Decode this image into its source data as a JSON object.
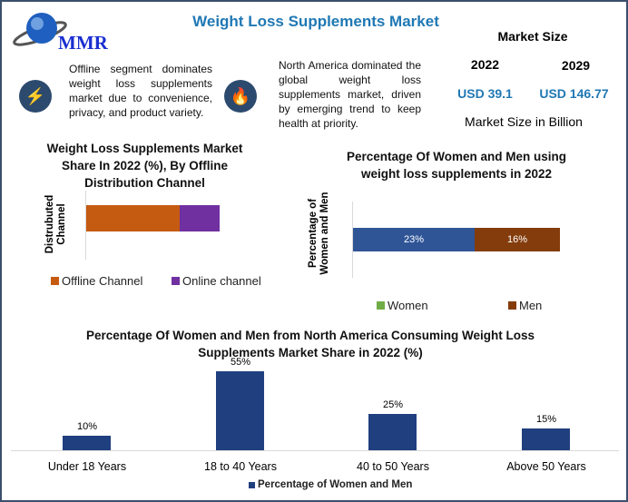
{
  "header": {
    "title": "Weight Loss Supplements Market",
    "logo_text": "MMR"
  },
  "info": [
    {
      "icon": "lightning-icon",
      "text": "Offline segment dominates weight loss supplements market due to convenience, privacy, and product variety."
    },
    {
      "icon": "flame-icon",
      "text": "North America dominated the global weight loss supplements market, driven by emerging trend to keep health at priority."
    }
  ],
  "market_size": {
    "heading": "Market Size",
    "year1": "2022",
    "year2": "2029",
    "value1": "USD 39.1",
    "value2": "USD 146.77",
    "footer": "Market Size in Billion"
  },
  "chart_data": [
    {
      "type": "bar",
      "orientation": "horizontal",
      "stacked": true,
      "title": "Weight Loss Supplements Market Share In 2022 (%), By Offline Distribution Channel",
      "ylabel": "Distrubuted Channel",
      "series": [
        {
          "name": "Offline Channel",
          "values": [
            70
          ],
          "color": "#c55a11"
        },
        {
          "name": "Online channel",
          "values": [
            30
          ],
          "color": "#7030a0"
        }
      ],
      "legend": "bottom"
    },
    {
      "type": "bar",
      "orientation": "horizontal",
      "stacked": true,
      "title": "Percentage Of Women and Men using weight loss supplements in 2022",
      "ylabel": "Percentage of Women and Men",
      "series": [
        {
          "name": "Women",
          "values": [
            23
          ],
          "label": "23%",
          "color": "#2f5597",
          "legend_color": "#70ad47"
        },
        {
          "name": "Men",
          "values": [
            16
          ],
          "label": "16%",
          "color": "#843c0c"
        }
      ],
      "legend": "bottom"
    },
    {
      "type": "bar",
      "title": "Percentage Of Women and Men from North America Consuming Weight Loss Supplements Market Share in 2022 (%)",
      "categories": [
        "Under 18 Years",
        "18 to 40 Years",
        "40 to 50 Years",
        "Above 50 Years"
      ],
      "series": [
        {
          "name": "Percentage of Women and Men",
          "values": [
            10,
            55,
            25,
            15
          ],
          "labels": [
            "10%",
            "55%",
            "25%",
            "15%"
          ],
          "color": "#203f7f"
        }
      ],
      "legend": "bottom"
    }
  ]
}
